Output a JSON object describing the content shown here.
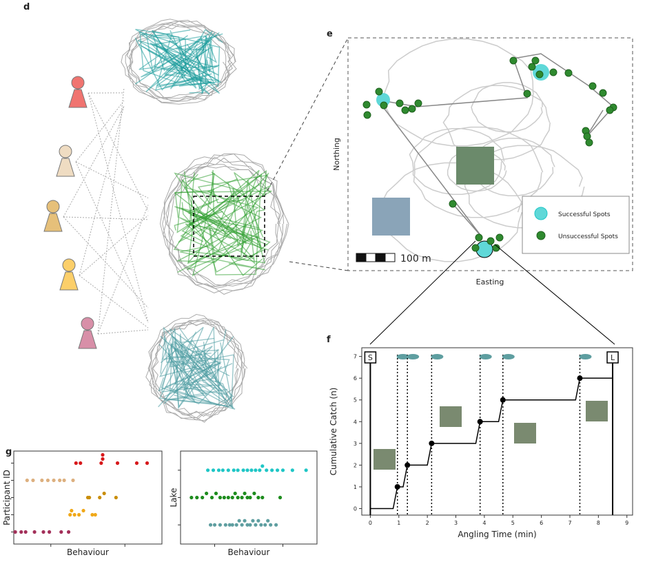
{
  "panel_labels": [
    "d",
    "e",
    "f",
    "g"
  ],
  "map": {
    "y_label": "Northing",
    "x_label": "Easting",
    "scale_label": "100 m",
    "legend": [
      "Successful Spots",
      "Unsuccessful Spots"
    ]
  },
  "chart_data": [
    {
      "type": "step",
      "x_label": "Angling Time (min)",
      "y_label": "Cumulative Catch (n)",
      "x": [
        0.95,
        1.3,
        2.15,
        3.85,
        4.65,
        7.35
      ],
      "values": [
        1,
        2,
        3,
        4,
        5,
        6
      ],
      "start": {
        "x": 0,
        "value": 0,
        "label": "S"
      },
      "end": {
        "x": 8.5,
        "label": "L"
      },
      "xlim": [
        -0.3,
        9.2
      ],
      "ylim": [
        -0.3,
        7.4
      ],
      "xticks": [
        0,
        1,
        2,
        3,
        4,
        5,
        6,
        7,
        8,
        9
      ],
      "yticks": [
        0,
        1,
        2,
        3,
        4,
        5,
        6,
        7
      ],
      "color": "#000000"
    },
    {
      "type": "strip",
      "y_label": "Participant ID",
      "x_label": "Behaviour",
      "xlim": [
        0,
        10
      ],
      "series": [
        {
          "color": "#a3305a",
          "values": [
            0.1,
            0.5,
            0.8,
            1.4,
            2.0,
            2.4,
            3.2,
            3.7
          ]
        },
        {
          "color": "#f0a818",
          "values": [
            3.8,
            3.9,
            4.1,
            4.4,
            4.7,
            5.3,
            5.5
          ]
        },
        {
          "color": "#c98e0a",
          "values": [
            5.0,
            5.1,
            5.8,
            6.1,
            6.9
          ]
        },
        {
          "color": "#ddb07f",
          "values": [
            0.9,
            1.3,
            1.9,
            2.3,
            2.7,
            3.1,
            3.4,
            4.0
          ]
        },
        {
          "color": "#d7191c",
          "values": [
            4.2,
            4.5,
            5.9,
            6.0,
            6.0,
            7.0,
            8.3,
            9.0
          ]
        }
      ]
    },
    {
      "type": "strip",
      "y_label": "Lake",
      "x_label": "Behaviour",
      "xlim": [
        0,
        10
      ],
      "series": [
        {
          "color": "#5e9ea0",
          "values": [
            2.2,
            2.5,
            2.9,
            3.3,
            3.6,
            3.8,
            4.1,
            4.3,
            4.5,
            4.7,
            4.9,
            5.1,
            5.3,
            5.5,
            5.7,
            5.9,
            6.2,
            6.4,
            6.6,
            7.0
          ]
        },
        {
          "color": "#1e8c1e",
          "values": [
            0.8,
            1.2,
            1.6,
            1.9,
            2.3,
            2.6,
            2.9,
            3.2,
            3.5,
            3.8,
            4.0,
            4.2,
            4.5,
            4.7,
            4.9,
            5.1,
            5.4,
            5.7,
            6.0,
            7.3
          ]
        },
        {
          "color": "#1fc6c6",
          "values": [
            2.0,
            2.4,
            2.8,
            3.1,
            3.5,
            3.9,
            4.2,
            4.6,
            4.9,
            5.2,
            5.5,
            5.8,
            6.0,
            6.3,
            6.7,
            7.1,
            7.5,
            8.2,
            9.2
          ]
        }
      ]
    }
  ]
}
